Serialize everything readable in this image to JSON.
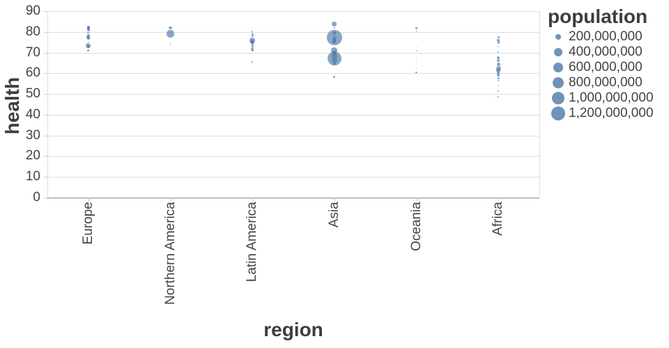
{
  "colors": {
    "bubble": "#4c78a8",
    "bubble_rgba": "rgba(76,120,168,0.66)",
    "grid": "#dddddd",
    "domain_line": "#888888",
    "label_text": "#434343",
    "title_text": "#3d3d3d"
  },
  "chart_data": {
    "type": "scatter",
    "subtype": "bubble",
    "xlabel": "region",
    "ylabel": "health",
    "ylim": [
      0,
      90
    ],
    "y_ticks": [
      0,
      10,
      20,
      30,
      40,
      50,
      60,
      70,
      80,
      90
    ],
    "grid": true,
    "categories": [
      "Europe",
      "Northern America",
      "Latin America",
      "Asia",
      "Oceania",
      "Africa"
    ],
    "legend": {
      "title": "population",
      "position": "right",
      "entries": [
        {
          "label": "200,000,000",
          "population": 200000000
        },
        {
          "label": "400,000,000",
          "population": 400000000
        },
        {
          "label": "600,000,000",
          "population": 600000000
        },
        {
          "label": "800,000,000",
          "population": 800000000
        },
        {
          "label": "1,000,000,000",
          "population": 1000000000
        },
        {
          "label": "1,200,000,000",
          "population": 1200000000
        }
      ]
    },
    "series": [
      {
        "region": "Europe",
        "points": [
          {
            "health": 82.1,
            "population": 60000000
          },
          {
            "health": 81.7,
            "population": 58000000
          },
          {
            "health": 81.0,
            "population": 43000000
          },
          {
            "health": 79.6,
            "population": 22000000
          },
          {
            "health": 78.2,
            "population": 39000000
          },
          {
            "health": 77.4,
            "population": 61000000
          },
          {
            "health": 76.8,
            "population": 38000000
          },
          {
            "health": 75.4,
            "population": 10000000
          },
          {
            "health": 73.4,
            "population": 143000000
          },
          {
            "health": 72.9,
            "population": 47000000
          },
          {
            "health": 70.9,
            "population": 22000000
          }
        ]
      },
      {
        "region": "Northern America",
        "points": [
          {
            "health": 81.9,
            "population": 45000000
          },
          {
            "health": 79.1,
            "population": 298000000
          },
          {
            "health": 74.8,
            "population": 4000000
          },
          {
            "health": 73.5,
            "population": 3000000
          }
        ]
      },
      {
        "region": "Latin America",
        "points": [
          {
            "health": 80.4,
            "population": 12000000
          },
          {
            "health": 79.3,
            "population": 20000000
          },
          {
            "health": 78.5,
            "population": 27000000
          },
          {
            "health": 78.0,
            "population": 16000000
          },
          {
            "health": 75.8,
            "population": 186000000
          },
          {
            "health": 75.2,
            "population": 107000000
          },
          {
            "health": 74.6,
            "population": 39000000
          },
          {
            "health": 73.2,
            "population": 27000000
          },
          {
            "health": 71.9,
            "population": 46000000
          },
          {
            "health": 71.1,
            "population": 28000000
          },
          {
            "health": 65.4,
            "population": 9000000
          }
        ]
      },
      {
        "region": "Asia",
        "points": [
          {
            "health": 83.8,
            "population": 128000000
          },
          {
            "health": 81.9,
            "population": 7000000
          },
          {
            "health": 79.4,
            "population": 48000000
          },
          {
            "health": 77.9,
            "population": 23000000
          },
          {
            "health": 77.2,
            "population": 1307000000
          },
          {
            "health": 76.8,
            "population": 84000000
          },
          {
            "health": 75.6,
            "population": 73000000
          },
          {
            "health": 75.1,
            "population": 69000000
          },
          {
            "health": 70.9,
            "population": 220000000
          },
          {
            "health": 69.8,
            "population": 85000000
          },
          {
            "health": 68.4,
            "population": 153000000
          },
          {
            "health": 67.2,
            "population": 1130000000
          },
          {
            "health": 66.4,
            "population": 158000000
          },
          {
            "health": 64.8,
            "population": 48000000
          },
          {
            "health": 58.1,
            "population": 25000000
          }
        ]
      },
      {
        "region": "Oceania",
        "points": [
          {
            "health": 81.9,
            "population": 22000000
          },
          {
            "health": 80.3,
            "population": 9000000
          },
          {
            "health": 72.4,
            "population": 4000000
          },
          {
            "health": 70.9,
            "population": 3000000
          },
          {
            "health": 66.6,
            "population": 2000000
          },
          {
            "health": 65.3,
            "population": 2000000
          },
          {
            "health": 62.6,
            "population": 3000000
          },
          {
            "health": 60.4,
            "population": 20000000
          }
        ]
      },
      {
        "region": "Africa",
        "points": [
          {
            "health": 77.4,
            "population": 25000000
          },
          {
            "health": 75.9,
            "population": 33000000
          },
          {
            "health": 74.9,
            "population": 30000000
          },
          {
            "health": 73.0,
            "population": 6000000
          },
          {
            "health": 70.1,
            "population": 8000000
          },
          {
            "health": 67.4,
            "population": 39000000
          },
          {
            "health": 66.1,
            "population": 40000000
          },
          {
            "health": 64.3,
            "population": 74000000
          },
          {
            "health": 62.3,
            "population": 131000000
          },
          {
            "health": 61.2,
            "population": 80000000
          },
          {
            "health": 60.2,
            "population": 48000000
          },
          {
            "health": 59.1,
            "population": 39000000
          },
          {
            "health": 57.6,
            "population": 24000000
          },
          {
            "health": 56.4,
            "population": 18000000
          },
          {
            "health": 53.9,
            "population": 11000000
          },
          {
            "health": 51.3,
            "population": 9000000
          },
          {
            "health": 48.8,
            "population": 8000000
          }
        ]
      }
    ]
  }
}
